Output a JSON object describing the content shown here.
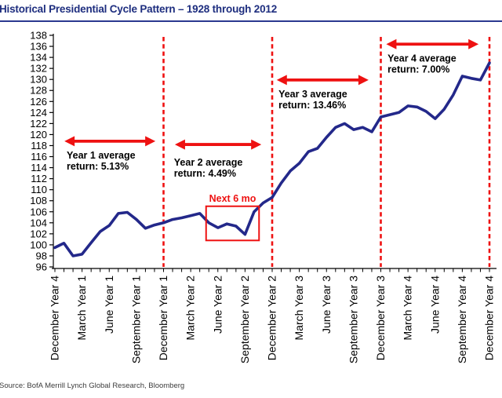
{
  "header": {
    "title": "Historical Presidential Cycle Pattern – 1928 through 2012"
  },
  "footer": {
    "source": "Source: BofA Merrill Lynch Global Research, Bloomberg"
  },
  "colors": {
    "title": "#1E2E7F",
    "title_rule": "#2B3990",
    "line": "#23288A",
    "red": "#EE1111",
    "axis": "#000000",
    "tick_label": "#000000",
    "source_text": "#3C3C3C",
    "background": "#FFFFFF"
  },
  "chart_data": {
    "type": "line",
    "title": "Historical Presidential Cycle Pattern – 1928 through 2012",
    "x_tick_labels": [
      "December Year 4",
      "March Year 1",
      "June Year 1",
      "September Year 1",
      "December Year 1",
      "March Year 2",
      "June Year 2",
      "September Year 2",
      "December Year 2",
      "March Year 3",
      "June Year 3",
      "September Year 3",
      "December Year 3",
      "March Year 4",
      "June Year 4",
      "September Year 4",
      "December Year 4"
    ],
    "months_per_tick_label": 3,
    "x_range_months": [
      0,
      48
    ],
    "ylim": [
      96,
      138
    ],
    "y_tick_step": 2,
    "grid": false,
    "legend_position": "none",
    "values": [
      99.5,
      100.3,
      98.0,
      98.3,
      100.4,
      102.4,
      103.5,
      105.7,
      105.9,
      104.6,
      103.0,
      103.6,
      104.0,
      104.6,
      104.9,
      105.3,
      105.7,
      104.0,
      103.1,
      103.8,
      103.4,
      101.9,
      106.0,
      107.6,
      108.6,
      111.2,
      113.4,
      114.8,
      116.9,
      117.5,
      119.5,
      121.3,
      122.0,
      120.9,
      121.3,
      120.5,
      123.2,
      123.6,
      124.0,
      125.2,
      125.0,
      124.2,
      122.9,
      124.6,
      127.2,
      130.6,
      130.2,
      129.9,
      133.0
    ],
    "dividers_months": [
      12,
      24,
      36,
      48
    ],
    "annotations": [
      {
        "id": "year-1",
        "line1": "Year 1 average",
        "line2": "return: 5.13%",
        "arrow": {
          "month_start": 1.05,
          "month_end": 11.1,
          "value": 118.8
        },
        "text_anchor": {
          "month": 1.3,
          "value": 117.2
        }
      },
      {
        "id": "year-2",
        "line1": "Year 2 average",
        "line2": "return: 4.49%",
        "arrow": {
          "month_start": 13.25,
          "month_end": 22.8,
          "value": 118.2
        },
        "text_anchor": {
          "month": 13.15,
          "value": 115.9
        }
      },
      {
        "id": "year-3",
        "line1": "Year 3 average",
        "line2": "return: 13.46%",
        "arrow": {
          "month_start": 24.5,
          "month_end": 34.65,
          "value": 129.9
        },
        "text_anchor": {
          "month": 24.7,
          "value": 128.3
        }
      },
      {
        "id": "year-4",
        "line1": "Year 4 average",
        "line2": "return: 7.00%",
        "arrow": {
          "month_start": 36.6,
          "month_end": 46.8,
          "value": 136.4
        },
        "text_anchor": {
          "month": 36.75,
          "value": 134.8
        }
      }
    ],
    "highlight_box": {
      "label": "Next 6 mo",
      "month_start": 16.7,
      "month_end": 22.55,
      "value_bottom": 100.8,
      "value_top": 107.0,
      "label_value": 107.8
    }
  }
}
